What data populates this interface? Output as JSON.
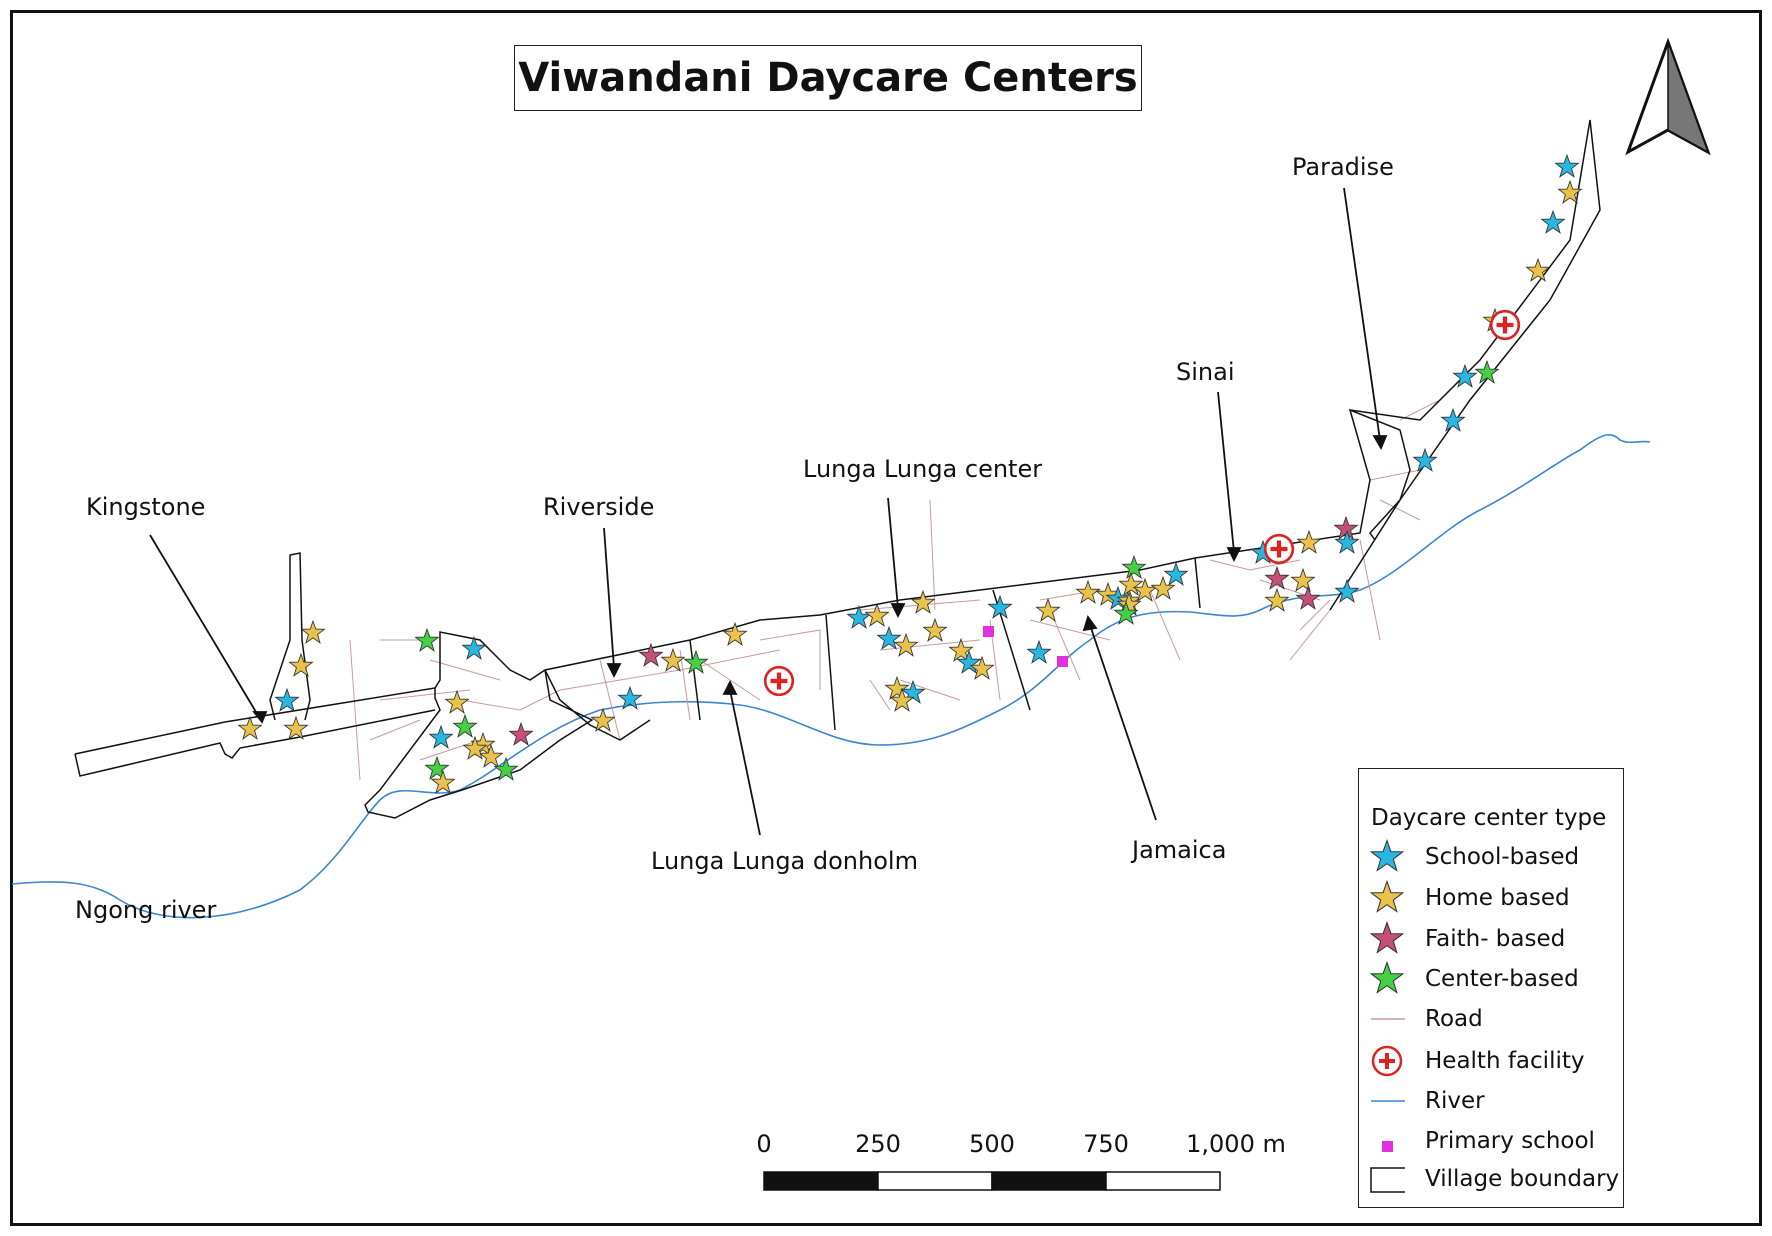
{
  "title": "Viwandani Daycare Centers",
  "place_labels": {
    "kingstone": "Kingstone",
    "riverside": "Riverside",
    "lunga_center": "Lunga Lunga center",
    "lunga_donholm": "Lunga Lunga donholm",
    "sinai": "Sinai",
    "paradise": "Paradise",
    "jamaica": "Jamaica",
    "ngong_river": "Ngong river"
  },
  "legend": {
    "title": "Daycare center type",
    "items": {
      "school": "School-based",
      "home": "Home based",
      "faith": "Faith- based",
      "center": "Center-based",
      "road": "Road",
      "health": "Health facility",
      "river": "River",
      "primary": "Primary school",
      "boundary": "Village boundary"
    }
  },
  "scale_bar": {
    "labels": [
      "0",
      "250",
      "500",
      "750",
      "1,000 m"
    ]
  },
  "colors": {
    "school_based": "#29b6e0",
    "home_based": "#e8c24a",
    "faith_based": "#c4507a",
    "center_based": "#45cf45",
    "road": "#c99a9a",
    "river": "#3a86d0",
    "health_facility": "#dd2222",
    "primary_school": "#e030e0",
    "boundary": "#111111"
  },
  "icons": {
    "north_arrow": "north-arrow-icon",
    "daycare": "star-icon",
    "health": "red-cross-circle-icon",
    "school": "square-icon"
  }
}
